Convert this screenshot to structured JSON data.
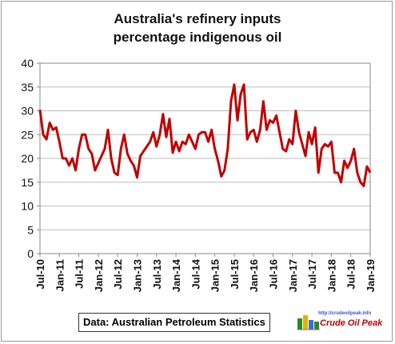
{
  "chart_data": {
    "type": "line",
    "title_line1": "Australia's refinery inputs",
    "title_line2": "percentage indigenous oil",
    "xlabel": "",
    "ylabel": "",
    "ylim": [
      0,
      40
    ],
    "yticks": [
      0,
      5,
      10,
      15,
      20,
      25,
      30,
      35,
      40
    ],
    "xticklabels": [
      "Jul-10",
      "Jan-11",
      "Jul-11",
      "Jan-12",
      "Jul-12",
      "Jan-13",
      "Jul-13",
      "Jan-14",
      "Jul-14",
      "Jan-15",
      "Jul-15",
      "Jan-16",
      "Jul-16",
      "Jan-17",
      "Jul-17",
      "Jan-18",
      "Jul-18",
      "Jan-19"
    ],
    "x_start": "Jul-10",
    "x_end": "Jan-19",
    "grid": true,
    "legend": "none",
    "line_color": "#c00000",
    "series": [
      {
        "values": [
          30.2,
          25,
          24,
          27.5,
          26,
          26.5,
          23.5,
          20,
          20,
          18.5,
          20,
          17.5,
          22,
          25,
          25,
          22,
          21,
          17.5,
          19,
          20.5,
          22,
          26,
          20,
          17,
          16.5,
          22,
          25,
          21,
          19.5,
          18.5,
          16,
          20.5,
          21.5,
          22.5,
          23.5,
          25.5,
          22.5,
          25,
          29.3,
          24.5,
          28.3,
          21.2,
          23.5,
          21.5,
          23.5,
          23,
          25,
          23.5,
          22,
          25,
          25.5,
          25.5,
          23.5,
          26,
          22,
          19.5,
          16.2,
          17.5,
          22,
          32,
          35.5,
          28,
          33.5,
          35.5,
          24,
          25.5,
          26,
          23.5,
          26,
          32,
          26,
          28,
          27.5,
          29,
          25.5,
          22,
          21.5,
          24,
          23,
          30,
          25.5,
          23,
          20.5,
          25.5,
          23,
          26.5,
          17,
          22,
          23,
          22.5,
          23.5,
          17,
          17,
          15,
          19.5,
          18,
          19.5,
          22,
          17,
          15,
          14.2,
          18.3,
          17
        ]
      }
    ]
  },
  "footer": {
    "source_note": "Data: Australian Petroleum Statistics",
    "logo_url": "http://crudeoilpeak.info",
    "logo_name": "Crude Oil Peak"
  }
}
